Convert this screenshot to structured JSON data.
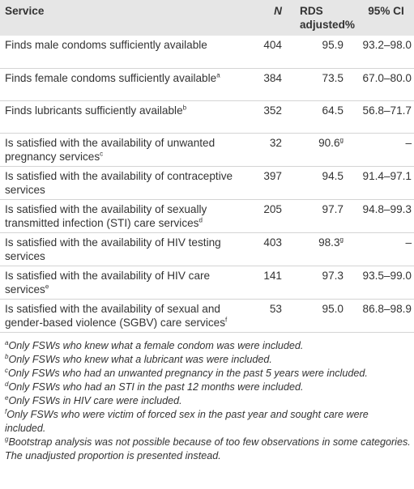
{
  "table": {
    "header": [
      "Service",
      "N",
      "RDS adjusted%",
      "95% CI"
    ],
    "rows": [
      {
        "service": "Finds male condoms sufficiently available",
        "n": "404",
        "rds": "95.9",
        "ci": "93.2–98.0"
      },
      {
        "service": "Finds female condoms sufficiently available",
        "service_note": "a",
        "n": "384",
        "rds": "73.5",
        "ci": "67.0–80.0"
      },
      {
        "service": "Finds lubricants sufficiently available",
        "service_note": "b",
        "n": "352",
        "rds": "64.5",
        "ci": "56.8–71.7"
      },
      {
        "service": "Is satisfied with the availability of unwanted pregnancy services",
        "service_note": "c",
        "n": "32",
        "rds": "90.6",
        "rds_note": "g",
        "ci": "–"
      },
      {
        "service": "Is satisfied with the availability of contraceptive services",
        "n": "397",
        "rds": "94.5",
        "ci": "91.4–97.1"
      },
      {
        "service": "Is satisfied with the availability of sexually transmitted infection (STI) care services",
        "service_note": "d",
        "n": "205",
        "rds": "97.7",
        "ci": "94.8–99.3"
      },
      {
        "service": "Is satisfied with the availability of HIV testing services",
        "n": "403",
        "rds": "98.3",
        "rds_note": "g",
        "ci": "–"
      },
      {
        "service": "Is satisfied with the availability of HIV care services",
        "service_note": "e",
        "n": "141",
        "rds": "97.3",
        "ci": "93.5–99.0"
      },
      {
        "service": "Is satisfied with the availability of sexual and gender-based violence (SGBV) care services",
        "service_note": "f",
        "n": "53",
        "rds": "95.0",
        "ci": "86.8–98.9"
      }
    ],
    "footnotes": [
      {
        "mark": "a",
        "text": "Only FSWs who knew what a female condom was were included."
      },
      {
        "mark": "b",
        "text": "Only FSWs who knew what a lubricant was were included."
      },
      {
        "mark": "c",
        "text": "Only FSWs who had an unwanted pregnancy in the past 5 years were included."
      },
      {
        "mark": "d",
        "text": "Only FSWs who had an STI in the past 12 months were included."
      },
      {
        "mark": "e",
        "text": "Only FSWs in HIV care were included."
      },
      {
        "mark": "f",
        "text": "Only FSWs who were victim of forced sex in the past year and sought care were included."
      },
      {
        "mark": "g",
        "text": "Bootstrap analysis was not possible because of too few observations in some categories. The unadjusted proportion is presented instead."
      }
    ]
  }
}
